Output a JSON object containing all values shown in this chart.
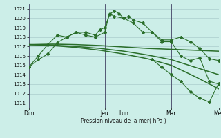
{
  "bg_color": "#cceee8",
  "grid_color": "#aacccc",
  "line_color": "#2a6e2a",
  "ylabel_text": "Pression niveau de la mer( hPa )",
  "ylim": [
    1010.5,
    1021.5
  ],
  "yticks": [
    1011,
    1012,
    1013,
    1014,
    1015,
    1016,
    1017,
    1018,
    1019,
    1020,
    1021
  ],
  "xtick_labels": [
    "Dim",
    "Jeu",
    "Lun",
    "Mar",
    "Mer"
  ],
  "xtick_positions": [
    0,
    16,
    20,
    30,
    40
  ],
  "vlines": [
    0,
    16,
    20,
    30,
    40
  ],
  "series1_x": [
    0,
    2,
    4,
    6,
    8,
    10,
    12,
    14,
    15,
    16,
    17,
    18,
    19,
    20,
    21,
    22,
    24,
    26,
    28,
    30,
    32,
    34,
    36,
    38,
    40
  ],
  "series1_y": [
    1014.8,
    1015.6,
    1016.2,
    1017.4,
    1018.0,
    1018.5,
    1018.5,
    1018.2,
    1018.8,
    1019.0,
    1020.4,
    1020.8,
    1020.5,
    1020.0,
    1020.2,
    1019.8,
    1019.5,
    1018.5,
    1017.7,
    1017.7,
    1018.0,
    1017.5,
    1016.8,
    1015.7,
    1015.5
  ],
  "series2_x": [
    0,
    2,
    4,
    6,
    8,
    10,
    12,
    14,
    16,
    17,
    18,
    20,
    22,
    24,
    26,
    28,
    30,
    32,
    34,
    36,
    38,
    40
  ],
  "series2_y": [
    1014.8,
    1016.0,
    1017.2,
    1018.2,
    1018.0,
    1018.5,
    1018.2,
    1018.0,
    1018.5,
    1020.5,
    1020.2,
    1020.0,
    1019.5,
    1018.5,
    1018.5,
    1017.5,
    1017.5,
    1016.0,
    1015.5,
    1015.8,
    1013.3,
    1013.0
  ],
  "smooth1_x": [
    0,
    5,
    10,
    15,
    20,
    25,
    30,
    35,
    40
  ],
  "smooth1_y": [
    1017.2,
    1017.25,
    1017.2,
    1017.1,
    1016.95,
    1016.8,
    1016.7,
    1016.6,
    1016.5
  ],
  "smooth2_x": [
    0,
    5,
    10,
    15,
    20,
    25,
    30,
    35,
    40
  ],
  "smooth2_y": [
    1017.2,
    1017.15,
    1017.0,
    1016.8,
    1016.5,
    1016.1,
    1015.6,
    1014.8,
    1014.0
  ],
  "smooth3_x": [
    0,
    5,
    10,
    15,
    20,
    25,
    30,
    35,
    40
  ],
  "smooth3_y": [
    1017.2,
    1017.1,
    1016.9,
    1016.6,
    1016.2,
    1015.7,
    1015.0,
    1013.8,
    1012.5
  ],
  "drop_x": [
    26,
    28,
    30,
    32,
    34,
    36,
    38,
    40
  ],
  "drop_y": [
    1015.6,
    1014.8,
    1014.0,
    1013.3,
    1012.2,
    1011.5,
    1011.1,
    1013.1
  ]
}
